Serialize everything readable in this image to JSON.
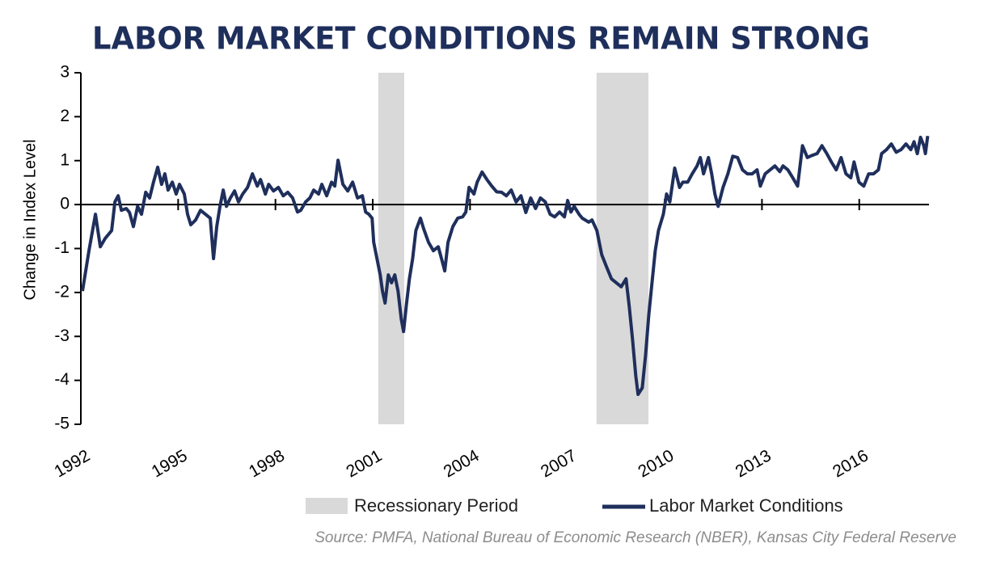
{
  "chart_data": {
    "type": "line",
    "title": "LABOR MARKET CONDITIONS REMAIN STRONG",
    "y_label": "Change in Index Level",
    "source": "Source: PMFA, National Bureau of Economic Research (NBER),  Kansas City Federal Reserve",
    "xlim": [
      1992,
      2018.15
    ],
    "xticks": [
      1992,
      1995,
      1998,
      2001,
      2004,
      2007,
      2010,
      2013,
      2016
    ],
    "ylim": [
      -5,
      3
    ],
    "yticks": [
      -5,
      -4,
      -3,
      -2,
      -1,
      0,
      1,
      2,
      3
    ],
    "recessions": {
      "name": "Recessionary Period",
      "color": "#d9d9d9",
      "spans": [
        [
          2001.17,
          2001.97
        ],
        [
          2007.9,
          2009.5
        ]
      ]
    },
    "x": [
      1992.05,
      1992.25,
      1992.45,
      1992.6,
      1992.75,
      1992.95,
      1993.05,
      1993.15,
      1993.25,
      1993.4,
      1993.5,
      1993.62,
      1993.75,
      1993.87,
      1994.0,
      1994.12,
      1994.24,
      1994.37,
      1994.49,
      1994.59,
      1994.69,
      1994.82,
      1994.94,
      1995.04,
      1995.19,
      1995.29,
      1995.39,
      1995.54,
      1995.69,
      1995.84,
      1995.99,
      1996.09,
      1996.19,
      1996.29,
      1996.39,
      1996.49,
      1996.61,
      1996.74,
      1996.86,
      1996.99,
      1997.14,
      1997.29,
      1997.44,
      1997.54,
      1997.69,
      1997.79,
      1997.94,
      1998.09,
      1998.24,
      1998.38,
      1998.53,
      1998.68,
      1998.78,
      1998.93,
      1999.06,
      1999.18,
      1999.33,
      1999.43,
      1999.58,
      1999.73,
      1999.83,
      1999.93,
      2000.08,
      2000.23,
      2000.38,
      2000.53,
      2000.68,
      2000.78,
      2000.88,
      2000.98,
      2001.03,
      2001.13,
      2001.23,
      2001.3,
      2001.38,
      2001.48,
      2001.58,
      2001.68,
      2001.78,
      2001.88,
      2001.95,
      2002.03,
      2002.13,
      2002.23,
      2002.33,
      2002.47,
      2002.57,
      2002.72,
      2002.87,
      2003.02,
      2003.12,
      2003.22,
      2003.32,
      2003.47,
      2003.62,
      2003.77,
      2003.87,
      2003.97,
      2004.12,
      2004.22,
      2004.37,
      2004.52,
      2004.67,
      2004.82,
      2004.97,
      2005.12,
      2005.27,
      2005.42,
      2005.57,
      2005.72,
      2005.87,
      2006.02,
      2006.17,
      2006.32,
      2006.47,
      2006.61,
      2006.76,
      2006.91,
      2007.01,
      2007.11,
      2007.21,
      2007.36,
      2007.46,
      2007.66,
      2007.76,
      2007.91,
      2008.06,
      2008.21,
      2008.36,
      2008.51,
      2008.66,
      2008.81,
      2008.91,
      2009.01,
      2009.11,
      2009.18,
      2009.31,
      2009.41,
      2009.51,
      2009.61,
      2009.71,
      2009.81,
      2009.96,
      2010.06,
      2010.16,
      2010.31,
      2010.46,
      2010.56,
      2010.71,
      2010.85,
      2011.0,
      2011.1,
      2011.2,
      2011.35,
      2011.45,
      2011.55,
      2011.65,
      2011.8,
      2011.95,
      2012.1,
      2012.25,
      2012.4,
      2012.55,
      2012.7,
      2012.85,
      2012.95,
      2013.1,
      2013.25,
      2013.4,
      2013.55,
      2013.65,
      2013.8,
      2013.95,
      2014.1,
      2014.25,
      2014.4,
      2014.55,
      2014.7,
      2014.85,
      2015.0,
      2015.14,
      2015.29,
      2015.44,
      2015.59,
      2015.74,
      2015.84,
      2015.99,
      2016.14,
      2016.29,
      2016.44,
      2016.59,
      2016.69,
      2016.84,
      2016.99,
      2017.14,
      2017.29,
      2017.44,
      2017.59,
      2017.69,
      2017.79,
      2017.89,
      2017.99,
      2018.04,
      2018.11
    ],
    "series": [
      {
        "name": "Labor Market Conditions",
        "color": "#1f2f5c",
        "values": [
          -1.97,
          -1.05,
          -0.22,
          -0.96,
          -0.77,
          -0.59,
          0.06,
          0.2,
          -0.13,
          -0.09,
          -0.18,
          -0.5,
          -0.04,
          -0.22,
          0.28,
          0.15,
          0.51,
          0.85,
          0.46,
          0.7,
          0.33,
          0.51,
          0.24,
          0.46,
          0.24,
          -0.22,
          -0.46,
          -0.35,
          -0.13,
          -0.22,
          -0.31,
          -1.23,
          -0.5,
          -0.04,
          0.33,
          -0.04,
          0.15,
          0.31,
          0.06,
          0.24,
          0.39,
          0.7,
          0.42,
          0.57,
          0.24,
          0.46,
          0.31,
          0.39,
          0.2,
          0.28,
          0.15,
          -0.17,
          -0.13,
          0.06,
          0.15,
          0.33,
          0.24,
          0.46,
          0.2,
          0.51,
          0.42,
          1.01,
          0.46,
          0.31,
          0.51,
          0.15,
          0.2,
          -0.17,
          -0.22,
          -0.31,
          -0.86,
          -1.23,
          -1.6,
          -1.97,
          -2.24,
          -1.6,
          -1.78,
          -1.6,
          -1.97,
          -2.61,
          -2.89,
          -2.33,
          -1.69,
          -1.23,
          -0.59,
          -0.31,
          -0.55,
          -0.86,
          -1.05,
          -0.96,
          -1.23,
          -1.51,
          -0.86,
          -0.5,
          -0.31,
          -0.28,
          -0.17,
          0.39,
          0.24,
          0.51,
          0.74,
          0.57,
          0.42,
          0.29,
          0.28,
          0.2,
          0.33,
          0.06,
          0.2,
          -0.18,
          0.15,
          -0.09,
          0.15,
          0.06,
          -0.22,
          -0.28,
          -0.17,
          -0.28,
          0.09,
          -0.17,
          -0.04,
          -0.22,
          -0.31,
          -0.4,
          -0.35,
          -0.59,
          -1.14,
          -1.42,
          -1.69,
          -1.78,
          -1.87,
          -1.69,
          -2.33,
          -3.07,
          -3.9,
          -4.32,
          -4.17,
          -3.44,
          -2.52,
          -1.78,
          -1.05,
          -0.59,
          -0.22,
          0.24,
          0.06,
          0.83,
          0.39,
          0.51,
          0.51,
          0.7,
          0.88,
          1.07,
          0.7,
          1.07,
          0.7,
          0.24,
          -0.04,
          0.39,
          0.7,
          1.1,
          1.07,
          0.79,
          0.7,
          0.7,
          0.79,
          0.42,
          0.7,
          0.79,
          0.88,
          0.75,
          0.88,
          0.79,
          0.61,
          0.42,
          1.34,
          1.07,
          1.12,
          1.16,
          1.34,
          1.16,
          0.97,
          0.79,
          1.07,
          0.7,
          0.61,
          0.97,
          0.51,
          0.42,
          0.7,
          0.7,
          0.79,
          1.16,
          1.25,
          1.38,
          1.19,
          1.25,
          1.38,
          1.25,
          1.43,
          1.16,
          1.53,
          1.34,
          1.16,
          1.56
        ]
      }
    ]
  }
}
